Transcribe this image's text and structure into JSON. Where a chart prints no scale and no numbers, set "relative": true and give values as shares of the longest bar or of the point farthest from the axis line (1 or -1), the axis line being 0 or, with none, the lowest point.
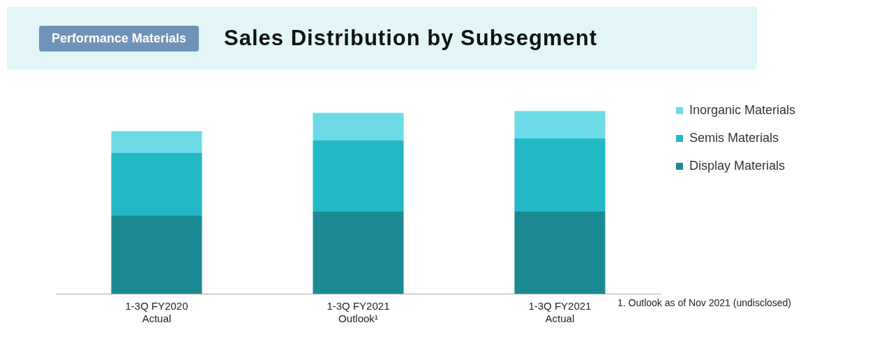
{
  "chart_data": {
    "type": "bar",
    "title": "Sales Distribution by Subsegment",
    "subtitle": "Performance Materials",
    "relative": true,
    "stacked": true,
    "legend": "right",
    "grid": false,
    "categories": [
      "1-3Q FY2020\nActual",
      "1-3Q FY2021\nOutlook¹",
      "1-3Q FY2021\nActual"
    ],
    "series": [
      {
        "name": "Display Materials",
        "color": "#1b8a93",
        "values": [
          0.43,
          0.45,
          0.45
        ]
      },
      {
        "name": "Semis Materials",
        "color": "#22b8c6",
        "values": [
          0.34,
          0.39,
          0.4
        ]
      },
      {
        "name": "Inorganic Materials",
        "color": "#6cdbe6",
        "values": [
          0.12,
          0.15,
          0.15
        ]
      }
    ],
    "annotations": [
      "1. Outlook as of Nov 2021 (undisclosed)"
    ]
  }
}
